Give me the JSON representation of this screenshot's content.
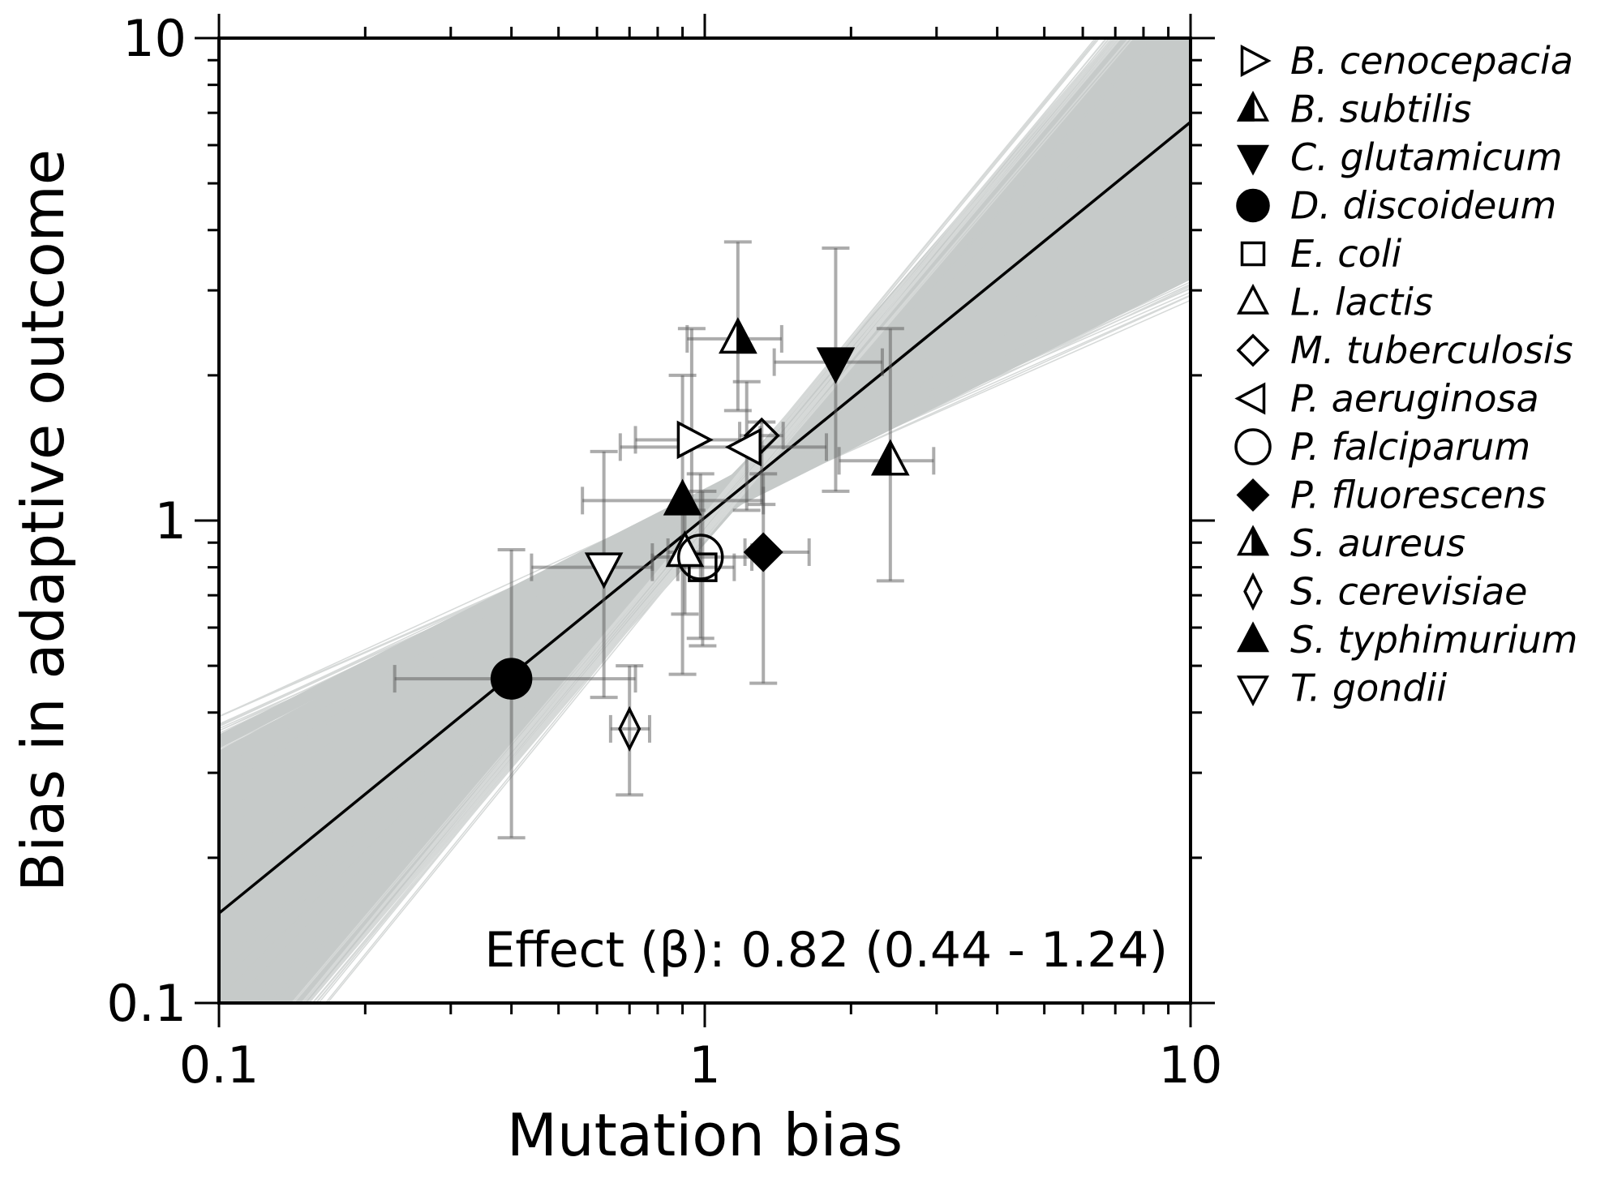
{
  "chart_data": {
    "type": "scatter",
    "title": "",
    "xlabel": "Mutation bias",
    "ylabel": "Bias in adaptive outcome",
    "xscale": "log",
    "yscale": "log",
    "xlim": [
      0.1,
      10
    ],
    "ylim": [
      0.1,
      10
    ],
    "xticks": [
      {
        "value": 0.1,
        "label": "0.1"
      },
      {
        "value": 1,
        "label": "1"
      },
      {
        "value": 10,
        "label": "10"
      }
    ],
    "yticks": [
      {
        "value": 0.1,
        "label": "0.1"
      },
      {
        "value": 1,
        "label": "1"
      },
      {
        "value": 10,
        "label": "10"
      }
    ],
    "grid": false,
    "legend_position": "outside-right",
    "annotation": "Effect (β): 0.82 (0.44 - 1.24)",
    "fit": {
      "slope": 0.82,
      "slope_ci": [
        0.44,
        1.24
      ],
      "log10_y_at_x1": 0.006,
      "pivot": [
        1.15,
        1.15
      ],
      "line_color": "#000000",
      "band_color": "#c6cac9"
    },
    "series": [
      {
        "name": "B. cenocepacia",
        "marker": "triangle-right-open",
        "x": 0.94,
        "y": 1.47,
        "xerr": [
          0.72,
          1.3
        ],
        "yerr": [
          1.05,
          2.5
        ]
      },
      {
        "name": "B. subtilis",
        "marker": "triangle-up-left-filled",
        "x": 2.41,
        "y": 1.33,
        "xerr": [
          1.89,
          2.96
        ],
        "yerr": [
          0.75,
          2.5
        ]
      },
      {
        "name": "C. glutamicum",
        "marker": "triangle-down-filled",
        "x": 1.86,
        "y": 2.13,
        "xerr": [
          1.39,
          2.32
        ],
        "yerr": [
          1.15,
          3.67
        ]
      },
      {
        "name": "D. discoideum",
        "marker": "circle-filled",
        "x": 0.4,
        "y": 0.47,
        "xerr": [
          0.23,
          0.72
        ],
        "yerr": [
          0.22,
          0.87
        ]
      },
      {
        "name": "E. coli",
        "marker": "square-open",
        "x": 0.99,
        "y": 0.8,
        "xerr": [
          0.88,
          1.15
        ],
        "yerr": [
          0.55,
          1.15
        ]
      },
      {
        "name": "L. lactis",
        "marker": "triangle-up-open",
        "x": 0.91,
        "y": 0.86,
        "xerr": [
          0.84,
          0.98
        ],
        "yerr": [
          0.64,
          1.05
        ]
      },
      {
        "name": "M. tuberculosis",
        "marker": "diamond-open",
        "x": 1.31,
        "y": 1.5,
        "xerr": [
          1.18,
          1.45
        ],
        "yerr": [
          1.08,
          1.6
        ]
      },
      {
        "name": "P. aeruginosa",
        "marker": "triangle-left-open",
        "x": 1.22,
        "y": 1.42,
        "xerr": [
          0.67,
          1.78
        ],
        "yerr": [
          1.05,
          1.94
        ]
      },
      {
        "name": "P. falciparum",
        "marker": "circle-open",
        "x": 0.98,
        "y": 0.84,
        "xerr": [
          0.78,
          1.25
        ],
        "yerr": [
          0.57,
          1.25
        ]
      },
      {
        "name": "P. fluorescens",
        "marker": "diamond-filled",
        "x": 1.32,
        "y": 0.86,
        "xerr": [
          1.21,
          1.64
        ],
        "yerr": [
          0.46,
          1.25
        ]
      },
      {
        "name": "S. aureus",
        "marker": "triangle-up-right-filled",
        "x": 1.17,
        "y": 2.38,
        "xerr": [
          0.92,
          1.44
        ],
        "yerr": [
          1.69,
          3.78
        ]
      },
      {
        "name": "S. cerevisiae",
        "marker": "thin-diamond-open",
        "x": 0.7,
        "y": 0.37,
        "xerr": [
          0.64,
          0.77
        ],
        "yerr": [
          0.27,
          0.5
        ]
      },
      {
        "name": "S. typhimurium",
        "marker": "triangle-up-filled",
        "x": 0.9,
        "y": 1.1,
        "xerr": [
          0.56,
          1.32
        ],
        "yerr": [
          0.48,
          2.0
        ]
      },
      {
        "name": "T. gondii",
        "marker": "triangle-down-open",
        "x": 0.62,
        "y": 0.8,
        "xerr": [
          0.44,
          0.78
        ],
        "yerr": [
          0.43,
          1.39
        ]
      }
    ]
  }
}
